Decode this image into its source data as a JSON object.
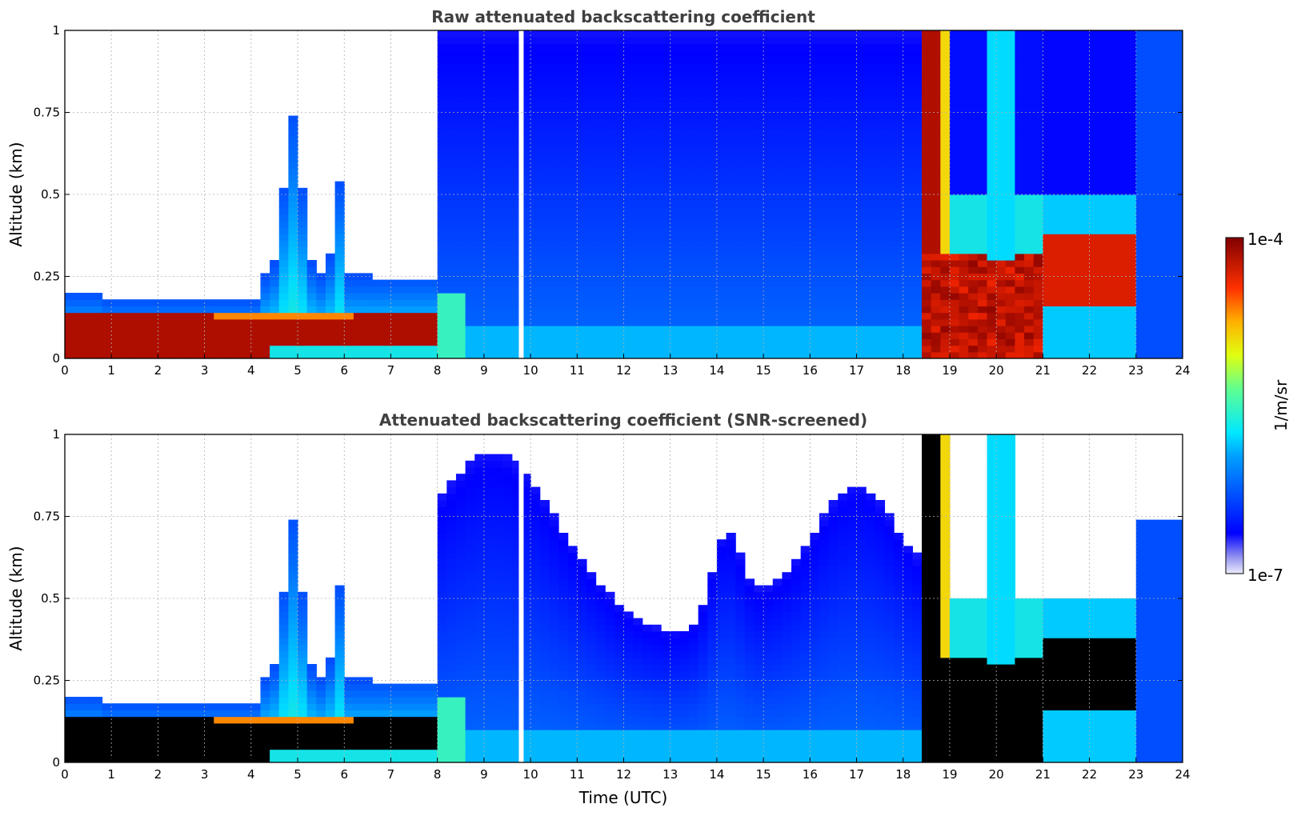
{
  "chart_data": [
    {
      "type": "heatmap",
      "title": "Raw attenuated backscattering coefficient",
      "xlabel": "",
      "ylabel": "Altitude (km)",
      "xlim": [
        0,
        24
      ],
      "ylim": [
        0,
        1
      ],
      "xticks": [
        "0",
        "1",
        "2",
        "3",
        "4",
        "5",
        "6",
        "7",
        "8",
        "9",
        "10",
        "11",
        "12",
        "13",
        "14",
        "15",
        "16",
        "17",
        "18",
        "19",
        "20",
        "21",
        "22",
        "23",
        "24"
      ],
      "yticks": [
        "0",
        "0.25",
        "0.5",
        "0.75",
        "1"
      ],
      "grid": true,
      "screened": false
    },
    {
      "type": "heatmap",
      "title": "Attenuated backscattering coefficient (SNR-screened)",
      "xlabel": "Time (UTC)",
      "ylabel": "Altitude (km)",
      "xlim": [
        0,
        24
      ],
      "ylim": [
        0,
        1
      ],
      "xticks": [
        "0",
        "1",
        "2",
        "3",
        "4",
        "5",
        "6",
        "7",
        "8",
        "9",
        "10",
        "11",
        "12",
        "13",
        "14",
        "15",
        "16",
        "17",
        "18",
        "19",
        "20",
        "21",
        "22",
        "23",
        "24"
      ],
      "yticks": [
        "0",
        "0.25",
        "0.5",
        "0.75",
        "1"
      ],
      "grid": true,
      "screened": true
    }
  ],
  "colorbar": {
    "label": "1/m/sr",
    "max_label": "1e-4",
    "min_label": "1e-7",
    "scale": "log",
    "colormap": "jet"
  },
  "colors": {
    "title": "#404040",
    "grid": "#b0b0b0"
  }
}
